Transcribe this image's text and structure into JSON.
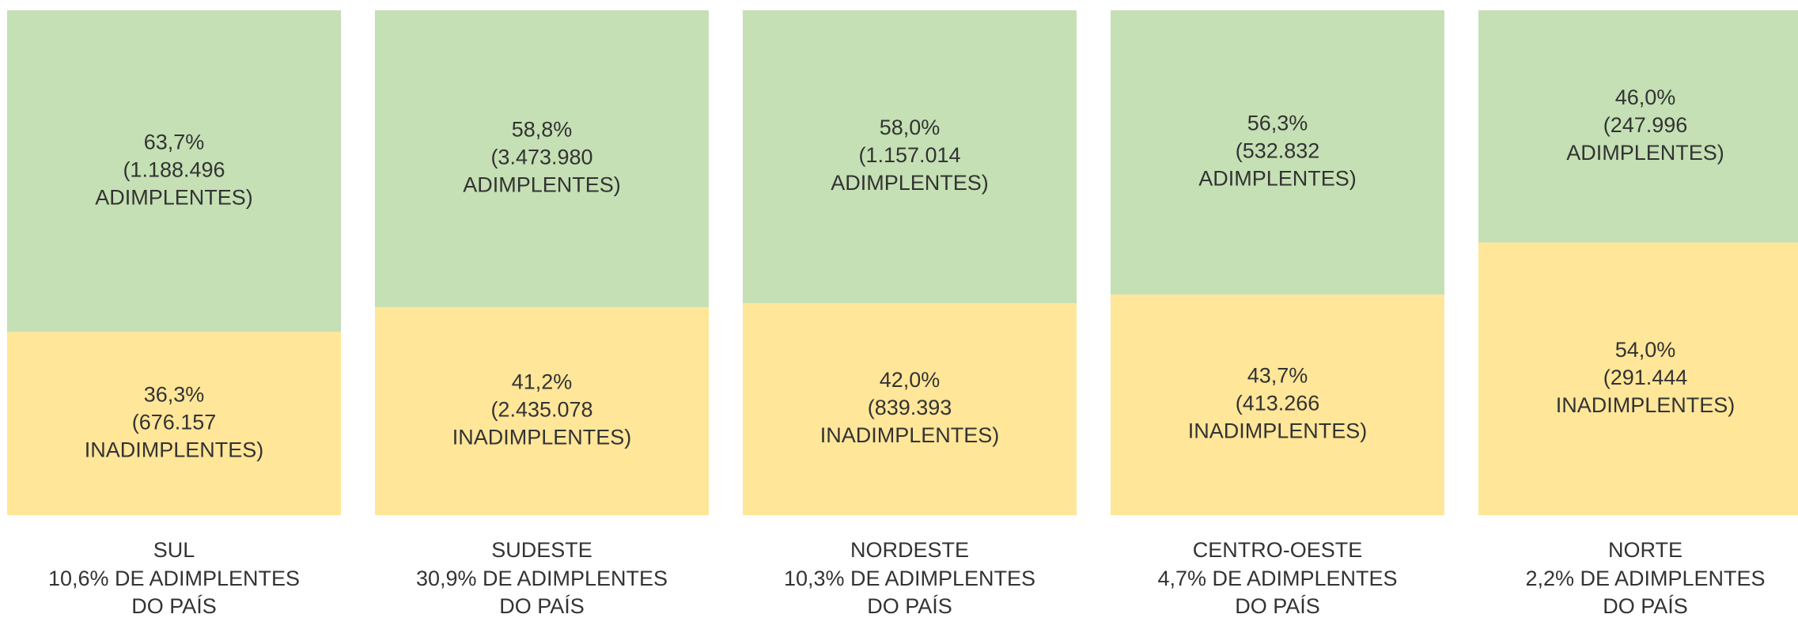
{
  "chart_data": {
    "type": "stacked_bar",
    "categories": [
      "SUL",
      "SUDESTE",
      "NORDESTE",
      "CENTRO-OESTE",
      "NORTE"
    ],
    "ylim": [
      0,
      100
    ],
    "series": [
      {
        "name": "ADIMPLENTES)",
        "color": "#c5e0b4",
        "values": [
          63.7,
          58.8,
          58.0,
          56.3,
          46.0
        ],
        "value_labels": [
          "63,7%",
          "58,8%",
          "58,0%",
          "56,3%",
          "46,0%"
        ],
        "count_labels": [
          "(1.188.496",
          "(3.473.980",
          "(1.157.014",
          "(532.832",
          "(247.996"
        ]
      },
      {
        "name": "INADIMPLENTES)",
        "color": "#ffe699",
        "values": [
          36.3,
          41.2,
          42.0,
          43.7,
          54.0
        ],
        "value_labels": [
          "36,3%",
          "41,2%",
          "42,0%",
          "43,7%",
          "54,0%"
        ],
        "count_labels": [
          "(676.157",
          "(2.435.078",
          "(839.393",
          "(413.266",
          "(291.444"
        ]
      }
    ],
    "share_labels": [
      "10,6% DE ADIMPLENTES",
      "30,9% DE ADIMPLENTES",
      "10,3% DE ADIMPLENTES",
      "4,7% DE ADIMPLENTES",
      "2,2% DE ADIMPLENTES"
    ],
    "share_suffix": "DO PAÍS"
  }
}
